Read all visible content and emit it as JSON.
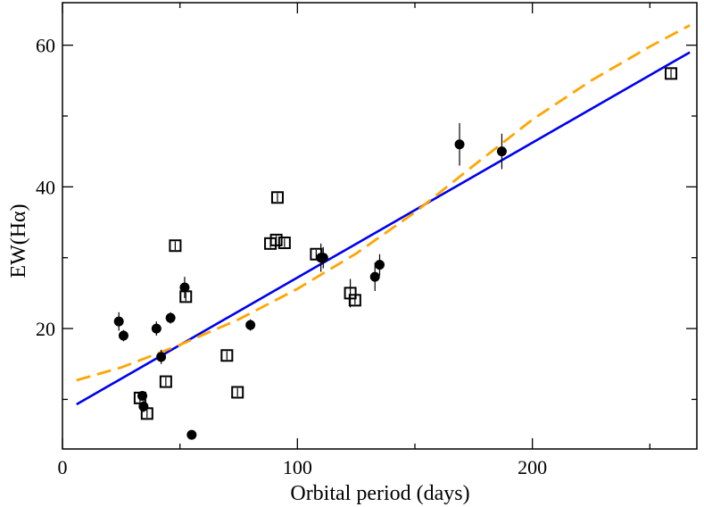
{
  "chart_data": {
    "type": "scatter",
    "xlabel": "Orbital period (days)",
    "ylabel": "EW(Hα)",
    "xlim": [
      0,
      270
    ],
    "ylim": [
      3,
      66
    ],
    "xticks": [
      0,
      100,
      200
    ],
    "yticks": [
      20,
      40,
      60
    ],
    "grid": false,
    "series": [
      {
        "marker": "filled-circle",
        "color": "#000000",
        "points": [
          {
            "x": 24,
            "y": 21,
            "err": 1.3
          },
          {
            "x": 26,
            "y": 19,
            "err": 0.8
          },
          {
            "x": 34,
            "y": 10.5,
            "err": 0.6
          },
          {
            "x": 34.5,
            "y": 9,
            "err": 0.8
          },
          {
            "x": 40,
            "y": 20,
            "err": 1.0
          },
          {
            "x": 42,
            "y": 16,
            "err": 1.0
          },
          {
            "x": 46,
            "y": 21.5,
            "err": 0.8
          },
          {
            "x": 52,
            "y": 25.8,
            "err": 1.5
          },
          {
            "x": 55,
            "y": 5,
            "err": 0
          },
          {
            "x": 80,
            "y": 20.5,
            "err": 0.8
          },
          {
            "x": 110,
            "y": 30,
            "err": 2.0
          },
          {
            "x": 111,
            "y": 30,
            "err": 1.5
          },
          {
            "x": 133,
            "y": 27.3,
            "err": 2.0
          },
          {
            "x": 135,
            "y": 29,
            "err": 1.5
          },
          {
            "x": 169,
            "y": 46,
            "err": 3.0
          },
          {
            "x": 187,
            "y": 45,
            "err": 2.5
          }
        ]
      },
      {
        "marker": "open-square",
        "color": "#000000",
        "points": [
          {
            "x": 33,
            "y": 10.2,
            "err": 0.6
          },
          {
            "x": 36,
            "y": 8,
            "err": 0.6
          },
          {
            "x": 44,
            "y": 12.5,
            "err": 0.6
          },
          {
            "x": 48,
            "y": 31.7,
            "err": 0.6
          },
          {
            "x": 52.5,
            "y": 24.5,
            "err": 0.6
          },
          {
            "x": 70,
            "y": 16.2,
            "err": 0.6
          },
          {
            "x": 74.5,
            "y": 11,
            "err": 0.6
          },
          {
            "x": 88.5,
            "y": 32,
            "err": 0.6
          },
          {
            "x": 91,
            "y": 32.5,
            "err": 0.6
          },
          {
            "x": 91.5,
            "y": 38.5,
            "err": 0.6
          },
          {
            "x": 94.5,
            "y": 32.1,
            "err": 0.6
          },
          {
            "x": 108,
            "y": 30.5,
            "err": 0.6
          },
          {
            "x": 122.5,
            "y": 25,
            "err": 2.0
          },
          {
            "x": 124.5,
            "y": 24,
            "err": 0.6
          },
          {
            "x": 259,
            "y": 56,
            "err": 0.6
          }
        ]
      }
    ],
    "fits": [
      {
        "style": "solid",
        "color": "#0000ee",
        "points": [
          [
            6,
            9.3
          ],
          [
            267,
            59
          ]
        ]
      },
      {
        "style": "dashed",
        "color": "#ffa500",
        "points": [
          [
            6,
            12.7
          ],
          [
            25,
            14.5
          ],
          [
            50,
            17.7
          ],
          [
            75,
            21.3
          ],
          [
            100,
            25.6
          ],
          [
            125,
            30.6
          ],
          [
            150,
            36.4
          ],
          [
            175,
            43.0
          ],
          [
            200,
            49.5
          ],
          [
            225,
            55.0
          ],
          [
            250,
            59.8
          ],
          [
            267,
            62.8
          ]
        ]
      }
    ]
  }
}
